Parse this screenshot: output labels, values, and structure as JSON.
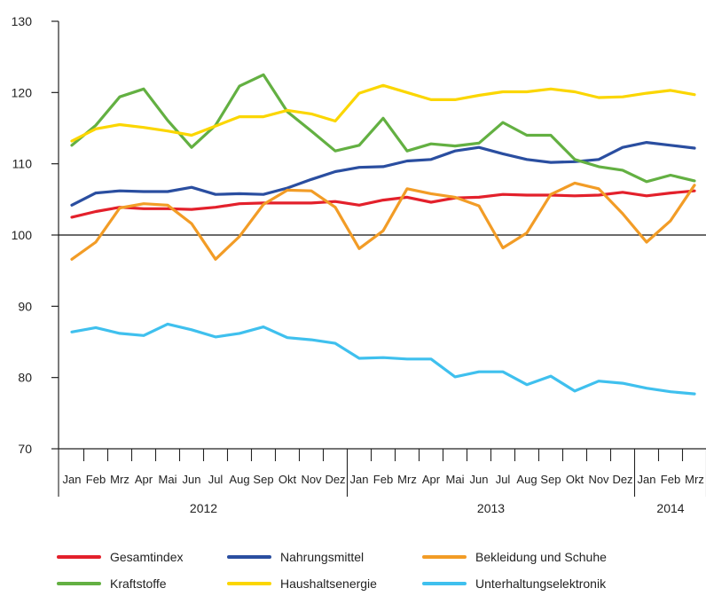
{
  "chart_data": {
    "type": "line",
    "title": "",
    "xlabel": "",
    "ylabel": "",
    "ylim": [
      70,
      130
    ],
    "yticks": [
      70,
      80,
      90,
      100,
      110,
      120,
      130
    ],
    "reference_line": 100,
    "grid": false,
    "legend_position": "bottom",
    "categories": [
      "Jan",
      "Feb",
      "Mrz",
      "Apr",
      "Mai",
      "Jun",
      "Jul",
      "Aug",
      "Sep",
      "Okt",
      "Nov",
      "Dez",
      "Jan",
      "Feb",
      "Mrz",
      "Apr",
      "Mai",
      "Jun",
      "Jul",
      "Aug",
      "Sep",
      "Okt",
      "Nov",
      "Dez",
      "Jan",
      "Feb",
      "Mrz"
    ],
    "years": [
      {
        "label": "2012",
        "start": 0,
        "end": 11
      },
      {
        "label": "2013",
        "start": 12,
        "end": 23
      },
      {
        "label": "2014",
        "start": 24,
        "end": 26
      }
    ],
    "series": [
      {
        "name": "Gesamtindex",
        "color": "#e3202b",
        "values": [
          102.5,
          103.3,
          103.9,
          103.7,
          103.7,
          103.6,
          103.9,
          104.4,
          104.5,
          104.5,
          104.5,
          104.7,
          104.2,
          104.9,
          105.3,
          104.6,
          105.2,
          105.3,
          105.7,
          105.6,
          105.6,
          105.5,
          105.6,
          106.0,
          105.5,
          105.9,
          106.2
        ]
      },
      {
        "name": "Nahrungsmittel",
        "color": "#2a4ea0",
        "values": [
          104.2,
          105.9,
          106.2,
          106.1,
          106.1,
          106.7,
          105.7,
          105.8,
          105.7,
          106.6,
          107.8,
          108.9,
          109.5,
          109.6,
          110.4,
          110.6,
          111.8,
          112.3,
          111.4,
          110.6,
          110.2,
          110.3,
          110.6,
          112.3,
          113.0,
          112.6,
          112.2
        ]
      },
      {
        "name": "Bekleidung und Schuhe",
        "color": "#f29c26",
        "values": [
          96.6,
          99.0,
          103.8,
          104.4,
          104.2,
          101.6,
          96.6,
          99.8,
          104.3,
          106.3,
          106.2,
          103.9,
          98.1,
          100.6,
          106.5,
          105.8,
          105.3,
          104.1,
          98.2,
          100.3,
          105.7,
          107.3,
          106.5,
          103.0,
          99.0,
          102.0,
          107.0
        ]
      },
      {
        "name": "Kraftstoffe",
        "color": "#63b042",
        "values": [
          112.6,
          115.4,
          119.4,
          120.5,
          116.1,
          112.3,
          115.4,
          120.9,
          122.5,
          117.3,
          114.6,
          111.8,
          112.6,
          116.4,
          111.8,
          112.8,
          112.5,
          112.9,
          115.8,
          114.0,
          114.0,
          110.6,
          109.6,
          109.1,
          107.5,
          108.4,
          107.6
        ]
      },
      {
        "name": "Haushaltsenergie",
        "color": "#fbd600",
        "values": [
          113.2,
          114.9,
          115.5,
          115.1,
          114.6,
          114.0,
          115.3,
          116.6,
          116.6,
          117.5,
          117.0,
          116.0,
          119.9,
          121.0,
          120.0,
          119.0,
          119.0,
          119.6,
          120.1,
          120.1,
          120.5,
          120.1,
          119.3,
          119.4,
          119.9,
          120.3,
          119.7
        ]
      },
      {
        "name": "Unterhaltungselektronik",
        "color": "#3fc0ee",
        "values": [
          86.4,
          87.0,
          86.2,
          85.9,
          87.5,
          86.7,
          85.7,
          86.2,
          87.1,
          85.6,
          85.3,
          84.8,
          82.7,
          82.8,
          82.6,
          82.6,
          80.1,
          80.8,
          80.8,
          79.0,
          80.2,
          78.1,
          79.5,
          79.2,
          78.5,
          78.0,
          77.7
        ]
      }
    ]
  }
}
